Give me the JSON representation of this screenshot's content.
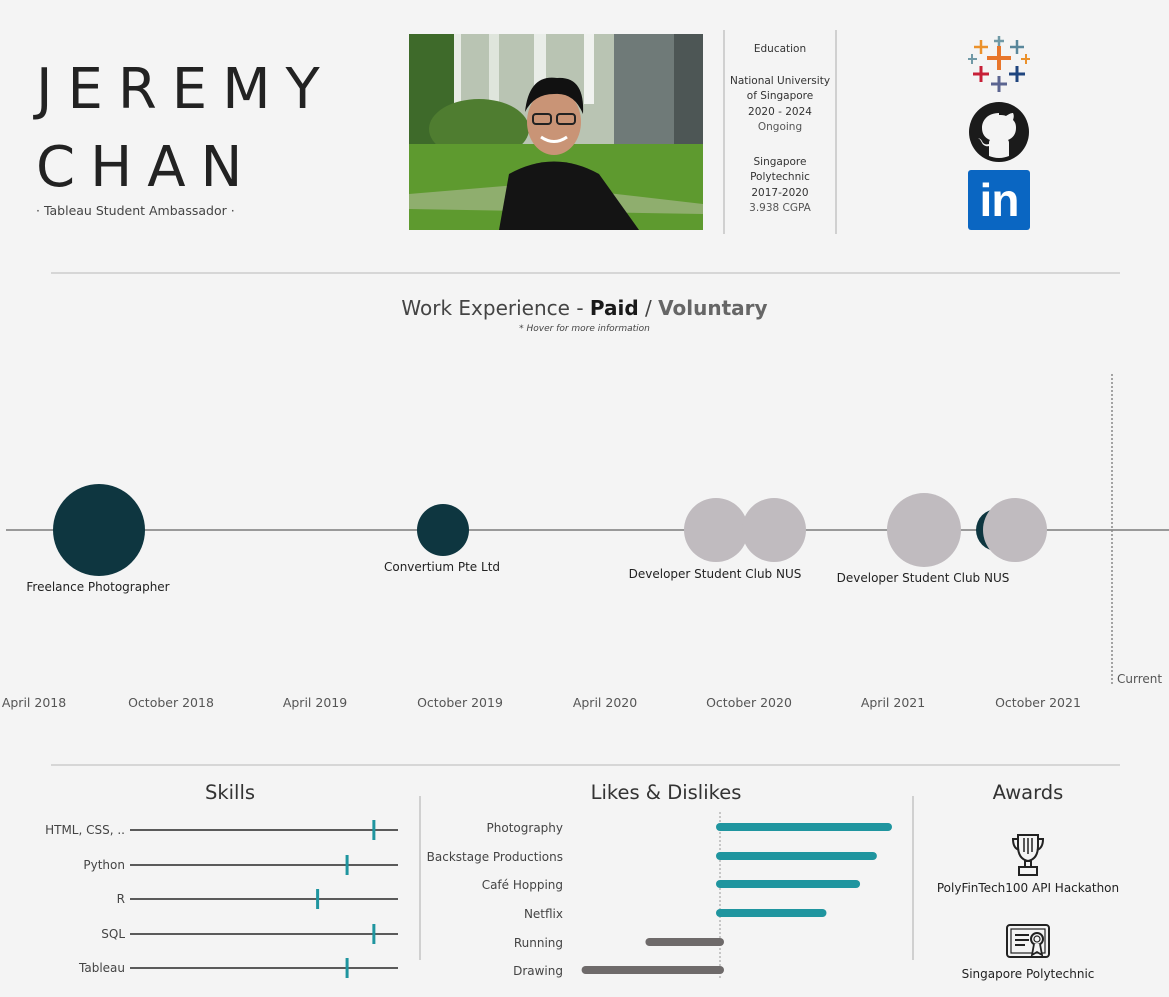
{
  "header": {
    "first_name": "JEREMY",
    "last_name": "CHAN",
    "tagline": "· Tableau Student Ambassador ·"
  },
  "education": {
    "title": "Education",
    "school1": {
      "name_line1": "National University",
      "name_line2": "of Singapore",
      "years": "2020 - 2024",
      "status": "Ongoing"
    },
    "school2": {
      "name_line1": "Singapore",
      "name_line2": "Polytechnic",
      "years": "2017-2020",
      "gpa": "3.938 CGPA"
    }
  },
  "social": {
    "icons": [
      "tableau-logo-icon",
      "github-icon",
      "linkedin-icon"
    ],
    "linkedin_text": "in"
  },
  "work": {
    "title_prefix": "Work Experience - ",
    "paid": "Paid",
    "slash": " / ",
    "voluntary": "Voluntary",
    "note": "* Hover for more information",
    "current_label": "Current",
    "paid_color": "#0e3640",
    "voluntary_color": "#c0bbbf",
    "axis_labels": [
      "April 2018",
      "October 2018",
      "April 2019",
      "October 2019",
      "April 2020",
      "October 2020",
      "April 2021",
      "October 2021"
    ],
    "jobs": [
      {
        "name": "Freelance Photographer",
        "type": "paid"
      },
      {
        "name": "Convertium Pte Ltd",
        "type": "paid"
      },
      {
        "name": "Developer Student Club NUS",
        "type": "voluntary"
      },
      {
        "name": "Developer Student Club NUS",
        "type": "voluntary"
      }
    ]
  },
  "skills": {
    "title": "Skills",
    "accent_color": "#1f959f",
    "items": [
      {
        "label": "HTML, CSS, ..",
        "level": 0.91
      },
      {
        "label": "Python",
        "level": 0.81
      },
      {
        "label": "R",
        "level": 0.7
      },
      {
        "label": "SQL",
        "level": 0.91
      },
      {
        "label": "Tableau",
        "level": 0.81
      }
    ]
  },
  "likes": {
    "title": "Likes & Dislikes",
    "like_color": "#1f959f",
    "dislike_color": "#6e6a6a",
    "items": [
      {
        "label": "Photography",
        "value": 1.0
      },
      {
        "label": "Backstage Productions",
        "value": 0.91
      },
      {
        "label": "Café Hopping",
        "value": 0.81
      },
      {
        "label": "Netflix",
        "value": 0.61
      },
      {
        "label": "Running",
        "value": -0.42
      },
      {
        "label": "Drawing",
        "value": -0.8
      }
    ]
  },
  "awards": {
    "title": "Awards",
    "items": [
      {
        "label": "PolyFinTech100 API Hackathon",
        "icon": "trophy-icon"
      },
      {
        "label": "Singapore Polytechnic",
        "icon": "certificate-icon"
      }
    ]
  }
}
